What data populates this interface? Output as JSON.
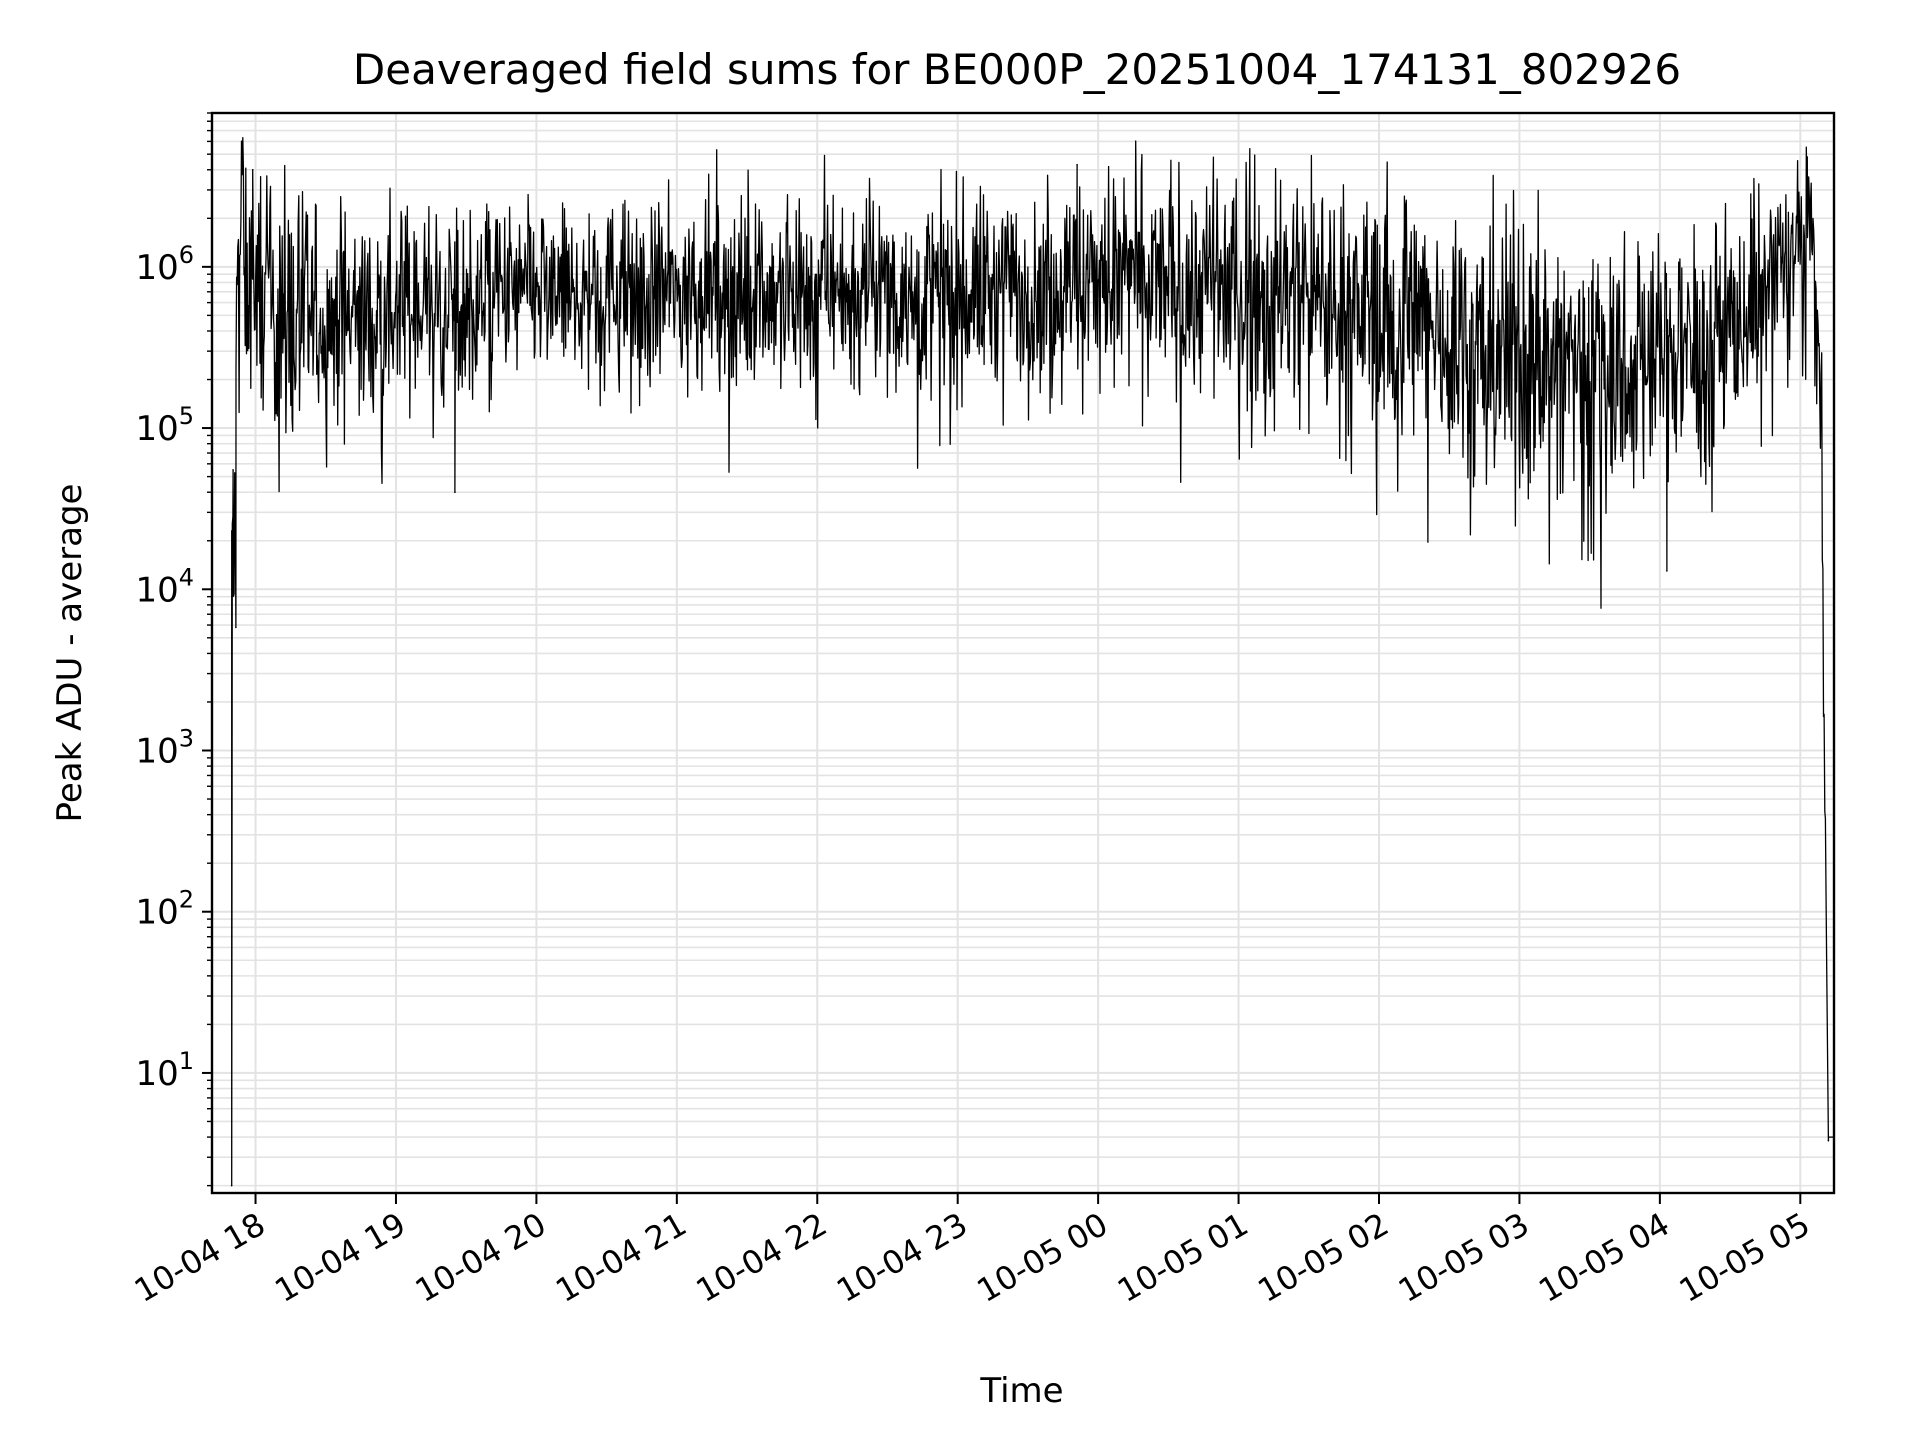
{
  "chart_data": {
    "type": "line",
    "title": "Deaveraged field sums for BE000P_20251004_174131_802926",
    "xlabel": "Time",
    "ylabel": "Peak ADU - average",
    "yscale": "log",
    "ylim": [
      1.8,
      9000000
    ],
    "xlim_hours_since_2025_10_04_18_00": [
      -0.31,
      11.24
    ],
    "grid": true,
    "x_tick_labels": [
      "10-04 18",
      "10-04 19",
      "10-04 20",
      "10-04 21",
      "10-04 22",
      "10-04 23",
      "10-05 00",
      "10-05 01",
      "10-05 02",
      "10-05 03",
      "10-05 04",
      "10-05 05"
    ],
    "x_tick_hours": [
      0,
      1,
      2,
      3,
      4,
      5,
      6,
      7,
      8,
      9,
      10,
      11
    ],
    "y_tick_bases": [
      "10",
      "10",
      "10",
      "10",
      "10",
      "10"
    ],
    "y_tick_exponents": [
      "1",
      "2",
      "3",
      "4",
      "5",
      "6"
    ],
    "y_tick_values": [
      10,
      100,
      1000,
      10000,
      100000,
      1000000
    ],
    "line_color": "#000000",
    "grid_color": "#e3e3e3",
    "series": [
      {
        "name": "field sums",
        "envelope_hours": [
          -0.17,
          -0.16,
          -0.15,
          -0.13,
          -0.11,
          -0.1,
          -0.08,
          -0.05,
          0.0,
          0.1,
          0.25,
          0.5,
          1.0,
          2.0,
          3.0,
          4.0,
          5.0,
          5.5,
          6.0,
          7.0,
          8.0,
          8.5,
          9.0,
          9.5,
          10.0,
          10.3,
          10.6,
          10.85,
          11.0,
          11.05,
          11.1,
          11.12,
          11.15,
          11.2,
          11.24
        ],
        "center_values": [
          20000,
          15000,
          12000,
          600000,
          1500000,
          2500000,
          1200000,
          700000,
          800000,
          600000,
          450000,
          450000,
          550000,
          700000,
          700000,
          700000,
          700000,
          750000,
          850000,
          750000,
          550000,
          400000,
          250000,
          250000,
          280000,
          350000,
          500000,
          900000,
          1500000,
          2000000,
          1200000,
          300000,
          100000,
          4,
          4
        ],
        "spread_decades": [
          0.5,
          0.5,
          0.5,
          0.7,
          0.5,
          0.5,
          0.5,
          0.5,
          0.5,
          0.5,
          0.5,
          0.45,
          0.45,
          0.4,
          0.4,
          0.4,
          0.45,
          0.45,
          0.45,
          0.5,
          0.55,
          0.6,
          0.65,
          0.65,
          0.6,
          0.55,
          0.45,
          0.45,
          0.35,
          0.35,
          0.35,
          0.4,
          0.4,
          0.0,
          0.0
        ],
        "notable_points": [
          {
            "x_hours": -0.17,
            "y": 2
          },
          {
            "x_hours": -0.16,
            "y": 55000
          },
          {
            "x_hours": -0.14,
            "y": 5800
          },
          {
            "x_hours": -0.02,
            "y": 4000000
          },
          {
            "x_hours": 1.42,
            "y": 40000
          },
          {
            "x_hours": 5.85,
            "y": 4300000
          },
          {
            "x_hours": 10.05,
            "y": 13000
          },
          {
            "x_hours": 11.05,
            "y": 4800000
          },
          {
            "x_hours": 11.2,
            "y": 3.8
          }
        ]
      }
    ]
  }
}
